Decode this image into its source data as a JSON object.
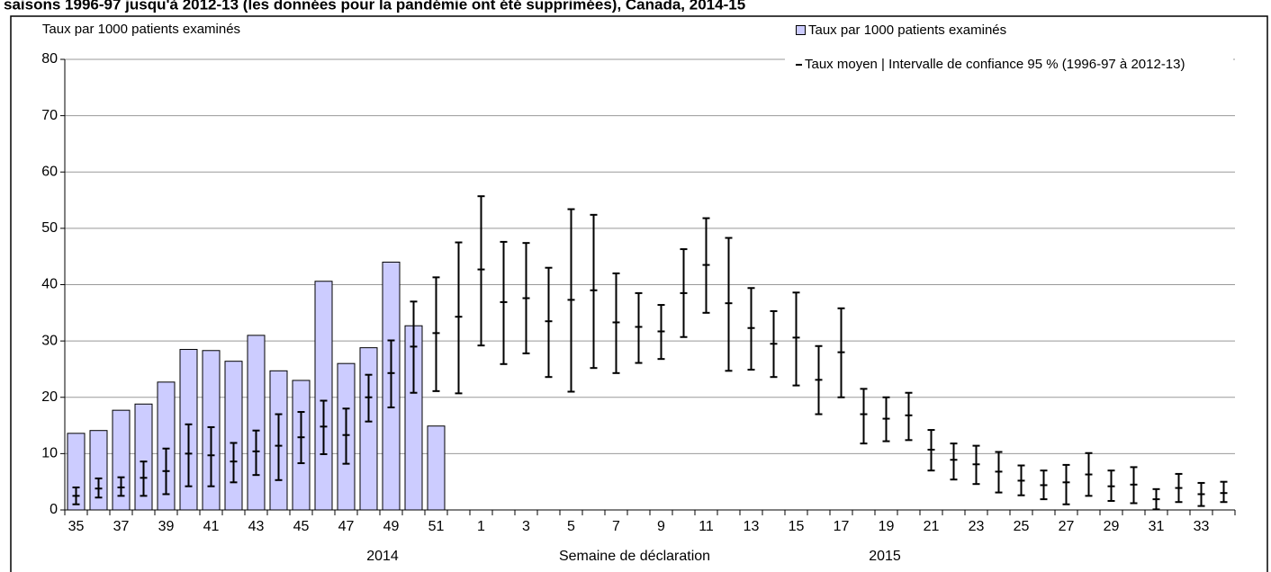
{
  "chart_data": {
    "type": "bar",
    "title": "saisons 1996-97 jusqu'à 2012-13 (les données pour la pandémie ont été supprimées), Canada, 2014-15",
    "y_label": "Taux par 1000 patients examinés",
    "x_label": "Semaine de déclaration",
    "year_labels": [
      "2014",
      "2015"
    ],
    "categories": [
      "35",
      null,
      "37",
      null,
      "39",
      null,
      "41",
      null,
      "43",
      null,
      "45",
      null,
      "47",
      null,
      "49",
      null,
      "51",
      null,
      "1",
      null,
      "3",
      null,
      "5",
      null,
      "7",
      null,
      "9",
      null,
      "11",
      null,
      "13",
      null,
      "15",
      null,
      "17",
      null,
      "19",
      null,
      "21",
      null,
      "23",
      null,
      "25",
      null,
      "27",
      null,
      "29",
      null,
      "31",
      null,
      "33",
      null
    ],
    "series": [
      {
        "name": "Taux par 1000 patients examinés",
        "type": "bar",
        "color": "#ccccff",
        "values": [
          13.6,
          14.1,
          17.7,
          18.8,
          22.7,
          28.5,
          28.3,
          26.4,
          31.0,
          24.7,
          23.0,
          40.6,
          26.0,
          28.8,
          44.0,
          32.7,
          14.9,
          null,
          null,
          null,
          null,
          null,
          null,
          null,
          null,
          null,
          null,
          null,
          null,
          null,
          null,
          null,
          null,
          null,
          null,
          null,
          null,
          null,
          null,
          null,
          null,
          null,
          null,
          null,
          null,
          null,
          null,
          null,
          null,
          null,
          null,
          null
        ]
      },
      {
        "name": "Taux moyen | Intervalle de confiance 95 % (1996-97 à 2012-13)",
        "type": "errorbar",
        "color": "#000000",
        "values": [
          2.5,
          3.8,
          4.0,
          5.7,
          6.9,
          10.0,
          9.7,
          8.6,
          10.4,
          11.4,
          12.9,
          14.8,
          13.3,
          20.0,
          24.3,
          29.0,
          31.4,
          34.3,
          42.7,
          36.9,
          37.6,
          33.5,
          37.3,
          39.0,
          33.3,
          32.5,
          31.7,
          38.5,
          43.5,
          36.7,
          32.3,
          29.5,
          30.6,
          23.1,
          28.0,
          17.0,
          16.2,
          16.8,
          10.7,
          8.9,
          8.1,
          6.8,
          5.2,
          4.4,
          4.9,
          6.3,
          4.2,
          4.5,
          1.9,
          3.9,
          2.8,
          3.0
        ],
        "low": [
          1.0,
          2.2,
          2.5,
          2.5,
          2.8,
          4.2,
          4.2,
          4.9,
          6.2,
          5.3,
          8.3,
          9.9,
          8.2,
          15.7,
          18.2,
          20.8,
          21.1,
          20.7,
          29.2,
          25.9,
          27.8,
          23.6,
          21.0,
          25.2,
          24.3,
          26.1,
          26.8,
          30.7,
          35.0,
          24.7,
          24.9,
          23.6,
          22.1,
          17.0,
          20.0,
          11.8,
          12.2,
          12.4,
          7.0,
          5.4,
          4.6,
          3.1,
          2.6,
          1.9,
          1.0,
          2.5,
          1.6,
          1.2,
          0.1,
          1.4,
          0.7,
          1.4
        ],
        "high": [
          4.0,
          5.6,
          5.8,
          8.6,
          10.9,
          15.2,
          14.7,
          11.9,
          14.1,
          17.0,
          17.4,
          19.4,
          18.0,
          24.0,
          30.1,
          37.0,
          41.3,
          47.5,
          55.7,
          47.6,
          47.4,
          43.0,
          53.4,
          52.4,
          42.0,
          38.5,
          36.4,
          46.3,
          51.8,
          48.3,
          39.4,
          35.3,
          38.6,
          29.1,
          35.8,
          21.5,
          20.0,
          20.8,
          14.2,
          11.8,
          11.4,
          10.3,
          7.9,
          7.0,
          8.0,
          10.1,
          7.0,
          7.6,
          3.7,
          6.4,
          4.8,
          5.0
        ]
      }
    ],
    "ylim": [
      0,
      80
    ],
    "yticks": [
      0,
      10,
      20,
      30,
      40,
      50,
      60,
      70,
      80
    ],
    "grid": true
  }
}
